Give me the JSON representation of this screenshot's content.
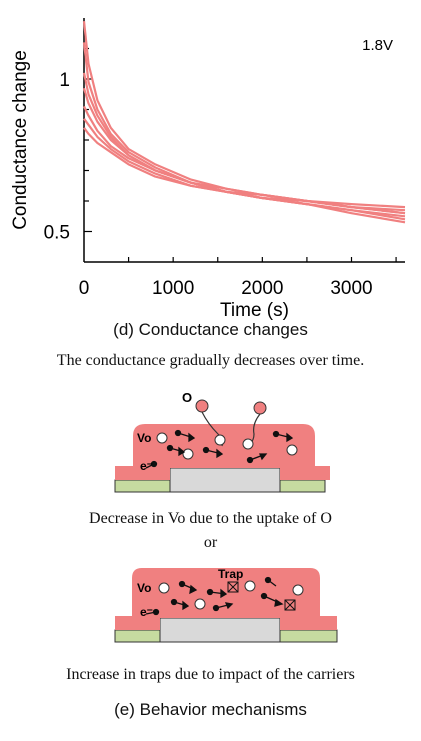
{
  "chart_data": {
    "type": "line",
    "ylabel": "Conductance change",
    "xlabel": "Time (s)",
    "annotation": "1.8V",
    "xlim": [
      0,
      3600
    ],
    "ylim": [
      0.4,
      1.2
    ],
    "x_ticks": [
      0,
      1000,
      2000,
      3000
    ],
    "x_tick_labels": [
      "0",
      "1000",
      "2000",
      "3000"
    ],
    "y_ticks": [
      0.5,
      1
    ],
    "y_tick_labels": [
      "0.5",
      "1"
    ],
    "line_color": "#F08080",
    "series": [
      {
        "x": [
          0,
          50,
          150,
          300,
          500,
          800,
          1200,
          1600,
          2000,
          2500,
          3000,
          3600
        ],
        "values": [
          1.19,
          1.05,
          0.93,
          0.84,
          0.77,
          0.72,
          0.67,
          0.64,
          0.62,
          0.6,
          0.58,
          0.56
        ]
      },
      {
        "x": [
          0,
          50,
          150,
          300,
          500,
          800,
          1200,
          1600,
          2000,
          2500,
          3000,
          3600
        ],
        "values": [
          1.12,
          0.99,
          0.9,
          0.82,
          0.76,
          0.71,
          0.66,
          0.63,
          0.61,
          0.59,
          0.57,
          0.55
        ]
      },
      {
        "x": [
          0,
          50,
          150,
          300,
          500,
          800,
          1200,
          1600,
          2000,
          2500,
          3000,
          3600
        ],
        "values": [
          1.02,
          0.95,
          0.88,
          0.81,
          0.75,
          0.7,
          0.66,
          0.63,
          0.61,
          0.6,
          0.58,
          0.57
        ]
      },
      {
        "x": [
          0,
          50,
          150,
          300,
          500,
          800,
          1200,
          1600,
          2000,
          2500,
          3000,
          3600
        ],
        "values": [
          0.97,
          0.92,
          0.86,
          0.8,
          0.75,
          0.7,
          0.66,
          0.63,
          0.62,
          0.6,
          0.59,
          0.58
        ]
      },
      {
        "x": [
          0,
          50,
          150,
          300,
          500,
          800,
          1200,
          1600,
          2000,
          2500,
          3000,
          3600
        ],
        "values": [
          0.91,
          0.88,
          0.83,
          0.78,
          0.74,
          0.7,
          0.66,
          0.64,
          0.62,
          0.6,
          0.58,
          0.56
        ]
      },
      {
        "x": [
          0,
          50,
          150,
          300,
          500,
          800,
          1200,
          1600,
          2000,
          2500,
          3000,
          3600
        ],
        "values": [
          0.87,
          0.85,
          0.81,
          0.77,
          0.73,
          0.69,
          0.65,
          0.63,
          0.61,
          0.59,
          0.57,
          0.54
        ]
      },
      {
        "x": [
          0,
          50,
          150,
          300,
          500,
          800,
          1200,
          1600,
          2000,
          2500,
          3000,
          3600
        ],
        "values": [
          0.84,
          0.82,
          0.79,
          0.76,
          0.72,
          0.68,
          0.65,
          0.63,
          0.61,
          0.59,
          0.56,
          0.53
        ]
      }
    ]
  },
  "captions": {
    "d_title": "(d) Conductance changes",
    "d_desc": "The conductance gradually decreases over time.",
    "mechanism_1": "Decrease in Vo due to the uptake of O",
    "or": "or",
    "mechanism_2": "Increase in traps due to impact of the carriers",
    "e_title": "(e) Behavior mechanisms"
  },
  "diagram_labels": {
    "oxygen": "O",
    "vacancy": "Vo",
    "electron": "e⁻",
    "trap": "Trap"
  },
  "colors": {
    "oxide": "#F08080",
    "electrode": "#d9d9d9",
    "contact": "#c6dba0",
    "line": "#F08080"
  }
}
